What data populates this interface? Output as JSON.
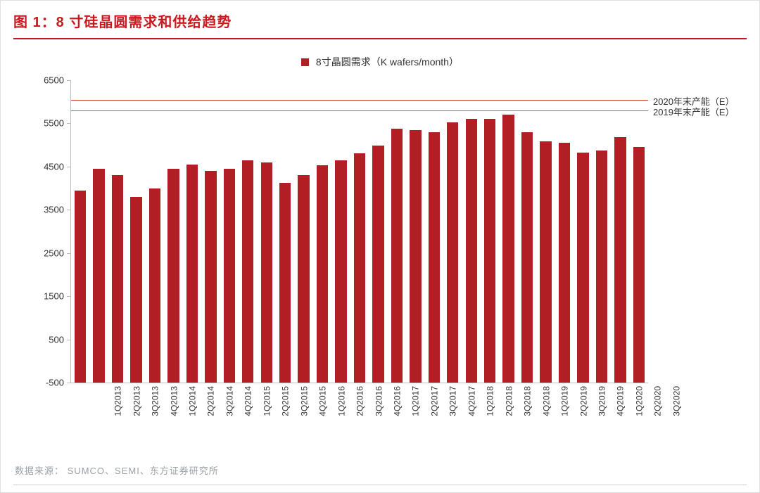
{
  "title": "图 1：8 寸硅晶圆需求和供给趋势",
  "legend": {
    "label": "8寸晶圆需求（K wafers/month）",
    "swatch_color": "#b11f24"
  },
  "chart": {
    "type": "bar",
    "ylim": [
      -500,
      6500
    ],
    "ytick_step": 1000,
    "yticks": [
      -500,
      500,
      1500,
      2500,
      3500,
      4500,
      5500,
      6500
    ],
    "axis_color": "#bdbdbd",
    "background_color": "#ffffff",
    "bar_color": "#b11f24",
    "bar_width": 0.62,
    "categories": [
      "1Q2013",
      "2Q2013",
      "3Q2013",
      "4Q2013",
      "1Q2014",
      "2Q2014",
      "3Q2014",
      "4Q2014",
      "1Q2015",
      "2Q2015",
      "3Q2015",
      "4Q2015",
      "1Q2016",
      "2Q2016",
      "3Q2016",
      "4Q2016",
      "1Q2017",
      "2Q2017",
      "3Q2017",
      "4Q2017",
      "1Q2018",
      "2Q2018",
      "3Q2018",
      "4Q2018",
      "1Q2019",
      "2Q2019",
      "3Q2019",
      "4Q2019",
      "1Q2020",
      "2Q2020",
      "3Q2020"
    ],
    "values": [
      3950,
      4450,
      4300,
      3800,
      4000,
      4450,
      4550,
      4400,
      4450,
      4650,
      4600,
      4130,
      4300,
      4530,
      4650,
      4800,
      4980,
      5380,
      5350,
      5300,
      5530,
      5600,
      5600,
      5700,
      5300,
      5080,
      5050,
      4830,
      4880,
      5180,
      4950
    ],
    "reference_lines": [
      {
        "value": 6050,
        "color": "#d13b2a",
        "label": "2020年末产能（E）",
        "width": 1.5
      },
      {
        "value": 5800,
        "color": "#4a8fd3",
        "label": "2019年末产能（E）",
        "width": 1.5
      }
    ],
    "xlabel_fontsize": 12,
    "ylabel_fontsize": 13
  },
  "source_prefix": "数据来源：",
  "source_text": "SUMCO、SEMI、东方证券研究所"
}
